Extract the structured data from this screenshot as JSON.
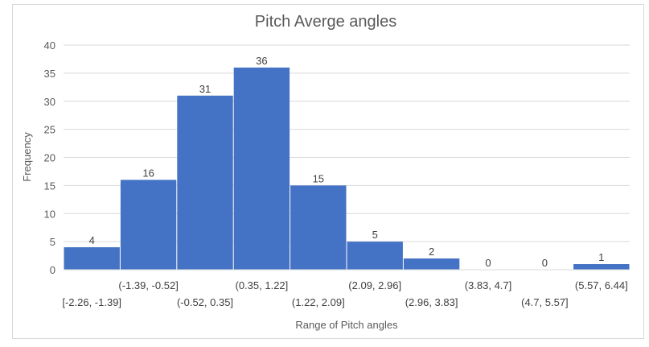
{
  "chart_data": {
    "type": "bar",
    "title": "Pitch Averge angles",
    "xlabel": "Range of Pitch angles",
    "ylabel": "Frequency",
    "categories": [
      "[-2.26, -1.39]",
      "(-1.39, -0.52]",
      "(-0.52, 0.35]",
      "(0.35, 1.22]",
      "(1.22, 2.09]",
      "(2.09, 2.96]",
      "(2.96, 3.83]",
      "(3.83, 4.7]",
      "(4.7, 5.57]",
      "(5.57, 6.44]"
    ],
    "values": [
      4,
      16,
      31,
      36,
      15,
      5,
      2,
      0,
      0,
      1
    ],
    "ylim": [
      0,
      40
    ],
    "yticks": [
      0,
      5,
      10,
      15,
      20,
      25,
      30,
      35,
      40
    ],
    "grid": true,
    "legend": "none",
    "bar_color": "#4472C4"
  }
}
